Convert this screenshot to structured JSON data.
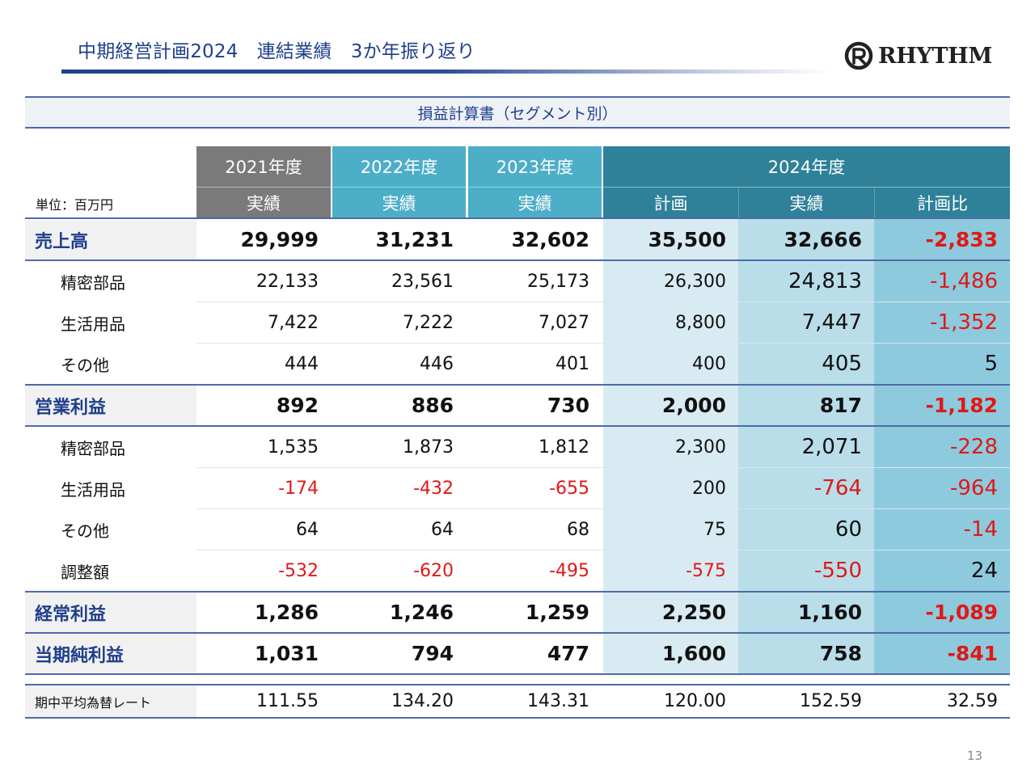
{
  "header": {
    "title": "中期経営計画2024　連結業績　3か年振り返り",
    "logo_text": "RHYTHM"
  },
  "banner": "損益計算書（セグメント別）",
  "unit_label": "単位：百万円",
  "columns": {
    "y2021": "2021年度",
    "y2022": "2022年度",
    "y2023": "2023年度",
    "y2024": "2024年度",
    "actual": "実績",
    "plan": "計画",
    "vs_plan": "計画比"
  },
  "rows": [
    {
      "label": "売上高",
      "values": [
        "29,999",
        "31,231",
        "32,602",
        "35,500",
        "32,666",
        "-2,833"
      ]
    },
    {
      "label": "精密部品",
      "values": [
        "22,133",
        "23,561",
        "25,173",
        "26,300",
        "24,813",
        "-1,486"
      ]
    },
    {
      "label": "生活用品",
      "values": [
        "7,422",
        "7,222",
        "7,027",
        "8,800",
        "7,447",
        "-1,352"
      ]
    },
    {
      "label": "その他",
      "values": [
        "444",
        "446",
        "401",
        "400",
        "405",
        "5"
      ]
    },
    {
      "label": "営業利益",
      "values": [
        "892",
        "886",
        "730",
        "2,000",
        "817",
        "-1,182"
      ]
    },
    {
      "label": "精密部品",
      "values": [
        "1,535",
        "1,873",
        "1,812",
        "2,300",
        "2,071",
        "-228"
      ]
    },
    {
      "label": "生活用品",
      "values": [
        "-174",
        "-432",
        "-655",
        "200",
        "-764",
        "-964"
      ]
    },
    {
      "label": "その他",
      "values": [
        "64",
        "64",
        "68",
        "75",
        "60",
        "-14"
      ]
    },
    {
      "label": "調整額",
      "values": [
        "-532",
        "-620",
        "-495",
        "-575",
        "-550",
        "24"
      ]
    },
    {
      "label": "経常利益",
      "values": [
        "1,286",
        "1,246",
        "1,259",
        "2,250",
        "1,160",
        "-1,089"
      ]
    },
    {
      "label": "当期純利益",
      "values": [
        "1,031",
        "794",
        "477",
        "1,600",
        "758",
        "-841"
      ]
    },
    {
      "label": "期中平均為替レート",
      "values": [
        "111.55",
        "134.20",
        "143.31",
        "120.00",
        "152.59",
        "32.59"
      ]
    }
  ],
  "page_number": "13",
  "colors": {
    "title_blue": "#1f3f8c",
    "negative_red": "#e01818",
    "header_2021": "#7a7a7a",
    "header_2022_2023": "#4daec8",
    "header_2024": "#2e8199",
    "plan_column_bg": "#d9ebf2",
    "actual_column_bg": "#b9dde9",
    "vs_plan_column_bg": "#8ecadd"
  }
}
